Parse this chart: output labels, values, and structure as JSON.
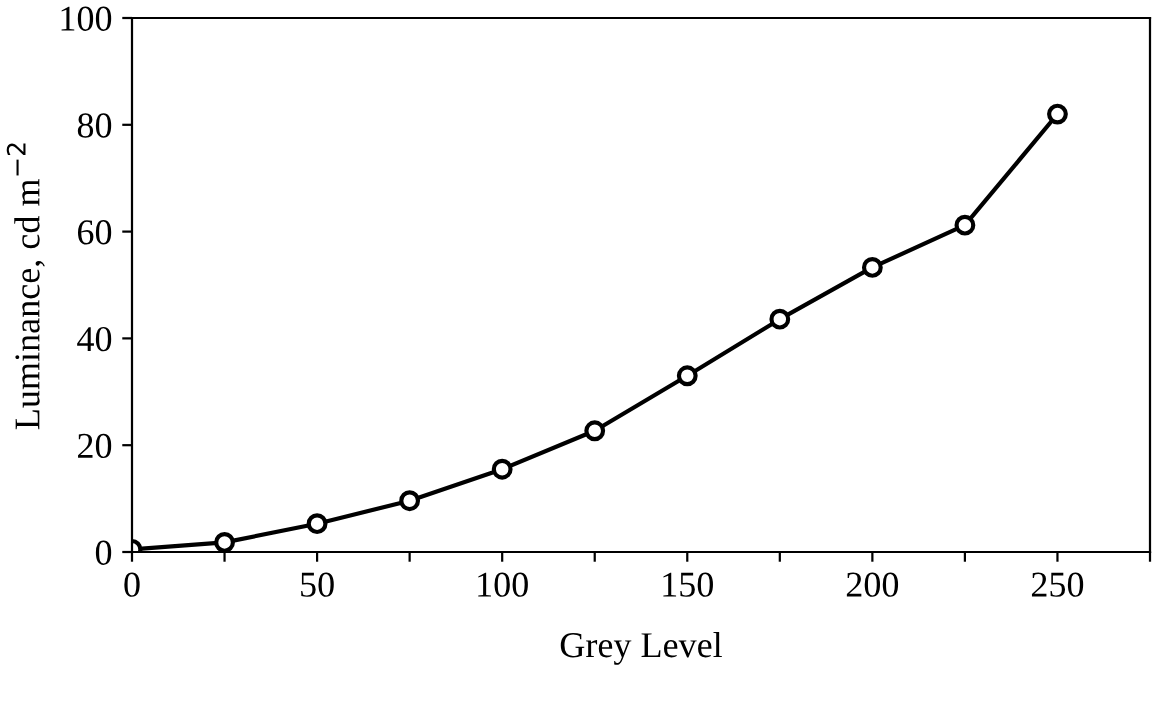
{
  "chart_data": {
    "type": "line",
    "xlabel": "Grey Level",
    "ylabel": "Luminance, cd m$^{−2}$",
    "x": [
      0,
      25,
      50,
      75,
      100,
      125,
      150,
      175,
      200,
      225,
      250
    ],
    "series": [
      {
        "color": "#000000",
        "values": [
          0.5,
          1.8,
          5.3,
          9.6,
          15.5,
          22.7,
          33,
          43.6,
          53.3,
          61.2,
          82
        ]
      }
    ],
    "xlim": [
      0,
      275
    ],
    "ylim": [
      0,
      100
    ],
    "xticks": [
      0,
      {
        "value": 25,
        "label": null
      },
      50,
      {
        "value": 75,
        "label": null
      },
      100,
      {
        "value": 125,
        "label": null
      },
      150,
      {
        "value": 175,
        "label": null
      },
      200,
      {
        "value": 225,
        "label": null
      },
      250,
      {
        "value": 275,
        "label": null
      }
    ],
    "yticks": [
      0,
      20,
      40,
      60,
      80,
      100
    ],
    "marker": "circle",
    "line_style": "solid",
    "grid": false,
    "legend": false
  }
}
